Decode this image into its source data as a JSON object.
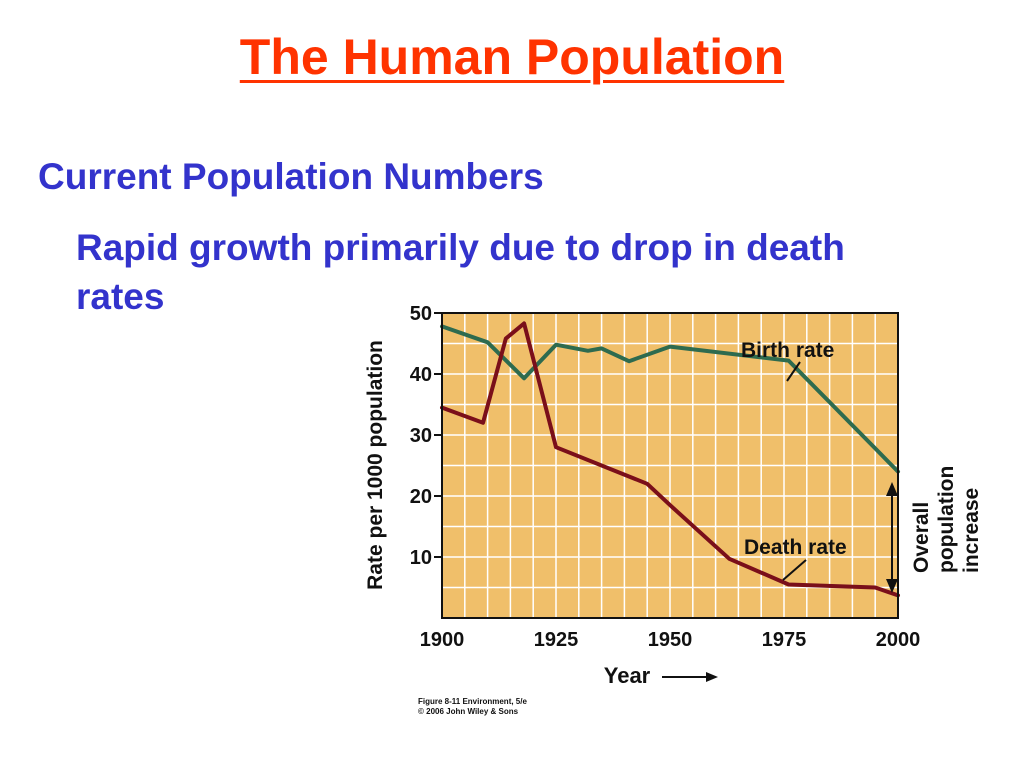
{
  "slide": {
    "title": "The Human Population",
    "bullet1": "Current Population Numbers",
    "bullet2": "Rapid growth primarily due to drop in death rates",
    "caption_line1": "Figure 8-11  Environment, 5/e",
    "caption_line2": "© 2006 John Wiley & Sons"
  },
  "colors": {
    "title": "#ff3300",
    "bullets": "#3333cc",
    "plot_bg": "#f0bf6a",
    "birth_line": "#2e6b4f",
    "death_line": "#7a0f1a",
    "grid": "#ffffff"
  },
  "chart_data": {
    "type": "line",
    "xlabel": "Year",
    "ylabel": "Rate per 1000 population",
    "xlim": [
      1900,
      2000
    ],
    "ylim": [
      0,
      50
    ],
    "xticks": [
      1900,
      1925,
      1950,
      1975,
      2000
    ],
    "yticks": [
      10,
      20,
      30,
      40,
      50
    ],
    "grid": true,
    "series": [
      {
        "name": "Birth rate",
        "x": [
          1900,
          1910,
          1918,
          1925,
          1932,
          1935,
          1941,
          1950,
          1976,
          1995,
          2000
        ],
        "y": [
          47.8,
          45.2,
          39.3,
          44.8,
          43.8,
          44.2,
          42.1,
          44.5,
          42.2,
          27.8,
          24.0
        ]
      },
      {
        "name": "Death rate",
        "x": [
          1900,
          1909,
          1914,
          1918,
          1925,
          1945,
          1950,
          1963,
          1976,
          1995,
          2000
        ],
        "y": [
          34.5,
          32.0,
          45.8,
          48.3,
          28.0,
          22.0,
          18.5,
          9.7,
          5.5,
          5.0,
          3.7
        ]
      }
    ],
    "annotations": {
      "birth_label": "Birth rate",
      "death_label": "Death rate",
      "increase_line1": "Overall",
      "increase_line2": "population",
      "increase_line3": "increase"
    }
  }
}
